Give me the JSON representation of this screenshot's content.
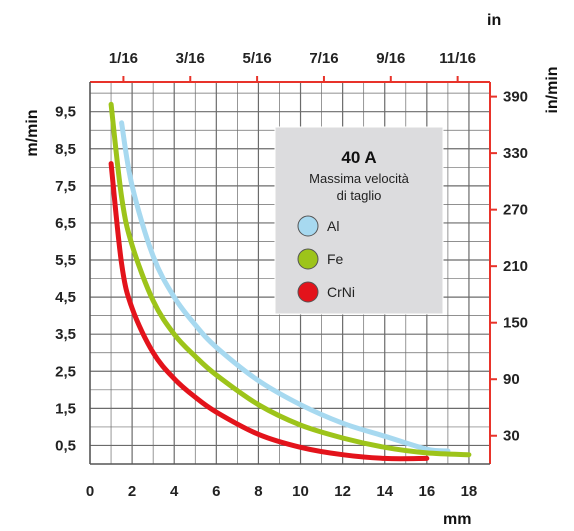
{
  "chart_data": {
    "type": "line",
    "title": "40 A",
    "subtitle_lines": [
      "Massima velocità",
      "di taglio"
    ],
    "xlabel": "mm",
    "xlabel_top": "in",
    "ylabel": "m/min",
    "ylabel_right": "in/min",
    "xlim": [
      0,
      19
    ],
    "ylim": [
      0,
      10.3
    ],
    "x_ticks": [
      "0",
      "2",
      "4",
      "6",
      "8",
      "10",
      "12",
      "14",
      "16",
      "18"
    ],
    "x_top_ticks": [
      "1/16",
      "3/16",
      "5/16",
      "7/16",
      "9/16",
      "11/16"
    ],
    "y_ticks": [
      "0,5",
      "1,5",
      "2,5",
      "3,5",
      "4,5",
      "5,5",
      "6,5",
      "7,5",
      "8,5",
      "9,5"
    ],
    "y_right_ticks": [
      "30",
      "90",
      "150",
      "210",
      "270",
      "330",
      "390"
    ],
    "grid": true,
    "legend_position": "upper-right",
    "colors": {
      "secondary_axis": "#e8332a",
      "legend_box": "#dcdcde",
      "grid": "#6b6b6b"
    },
    "series": [
      {
        "name": "Al",
        "color": "#a7d9f0",
        "x": [
          1.5,
          2,
          3,
          4,
          5,
          6,
          8,
          10,
          12,
          14,
          16,
          17
        ],
        "y": [
          9.2,
          7.5,
          5.6,
          4.5,
          3.75,
          3.15,
          2.25,
          1.6,
          1.1,
          0.75,
          0.4,
          0.35
        ]
      },
      {
        "name": "Fe",
        "color": "#9dc41a",
        "x": [
          1,
          1.5,
          2,
          3,
          4,
          5,
          6,
          8,
          10,
          12,
          14,
          16,
          18
        ],
        "y": [
          9.7,
          7.2,
          5.9,
          4.4,
          3.5,
          2.9,
          2.4,
          1.6,
          1.05,
          0.7,
          0.45,
          0.3,
          0.25
        ]
      },
      {
        "name": "CrNi",
        "color": "#e3131b",
        "x": [
          1,
          1.5,
          2,
          3,
          4,
          5,
          6,
          8,
          10,
          12,
          14,
          16
        ],
        "y": [
          8.1,
          5.4,
          4.2,
          3.0,
          2.3,
          1.8,
          1.4,
          0.8,
          0.45,
          0.25,
          0.15,
          0.15
        ]
      }
    ]
  }
}
